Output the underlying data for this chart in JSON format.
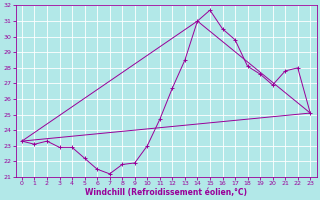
{
  "title": "",
  "xlabel": "Windchill (Refroidissement éolien,°C)",
  "xlim": [
    -0.5,
    23.5
  ],
  "ylim": [
    21,
    32
  ],
  "yticks": [
    21,
    22,
    23,
    24,
    25,
    26,
    27,
    28,
    29,
    30,
    31,
    32
  ],
  "xticks": [
    0,
    1,
    2,
    3,
    4,
    5,
    6,
    7,
    8,
    9,
    10,
    11,
    12,
    13,
    14,
    15,
    16,
    17,
    18,
    19,
    20,
    21,
    22,
    23
  ],
  "background_color": "#b2e8e8",
  "grid_color": "#ffffff",
  "line_color": "#990099",
  "line1_x": [
    0,
    1,
    2,
    3,
    4,
    5,
    6,
    7,
    8,
    9,
    10,
    11,
    12,
    13,
    14,
    15,
    16,
    17,
    18,
    19,
    20,
    21,
    22,
    23
  ],
  "line1_y": [
    23.3,
    23.1,
    23.3,
    22.9,
    22.9,
    22.2,
    21.5,
    21.2,
    21.8,
    21.9,
    23.0,
    24.7,
    26.7,
    28.5,
    31.0,
    31.7,
    30.5,
    29.8,
    28.1,
    27.6,
    26.9,
    27.8,
    28.0,
    25.1
  ],
  "line2_x": [
    0,
    14,
    23
  ],
  "line2_y": [
    23.3,
    31.0,
    25.1
  ],
  "line3_x": [
    0,
    23
  ],
  "line3_y": [
    23.3,
    25.1
  ],
  "tick_fontsize": 4.5,
  "xlabel_fontsize": 5.5,
  "lw": 0.7,
  "marker_size": 3.0,
  "marker_ew": 0.7
}
